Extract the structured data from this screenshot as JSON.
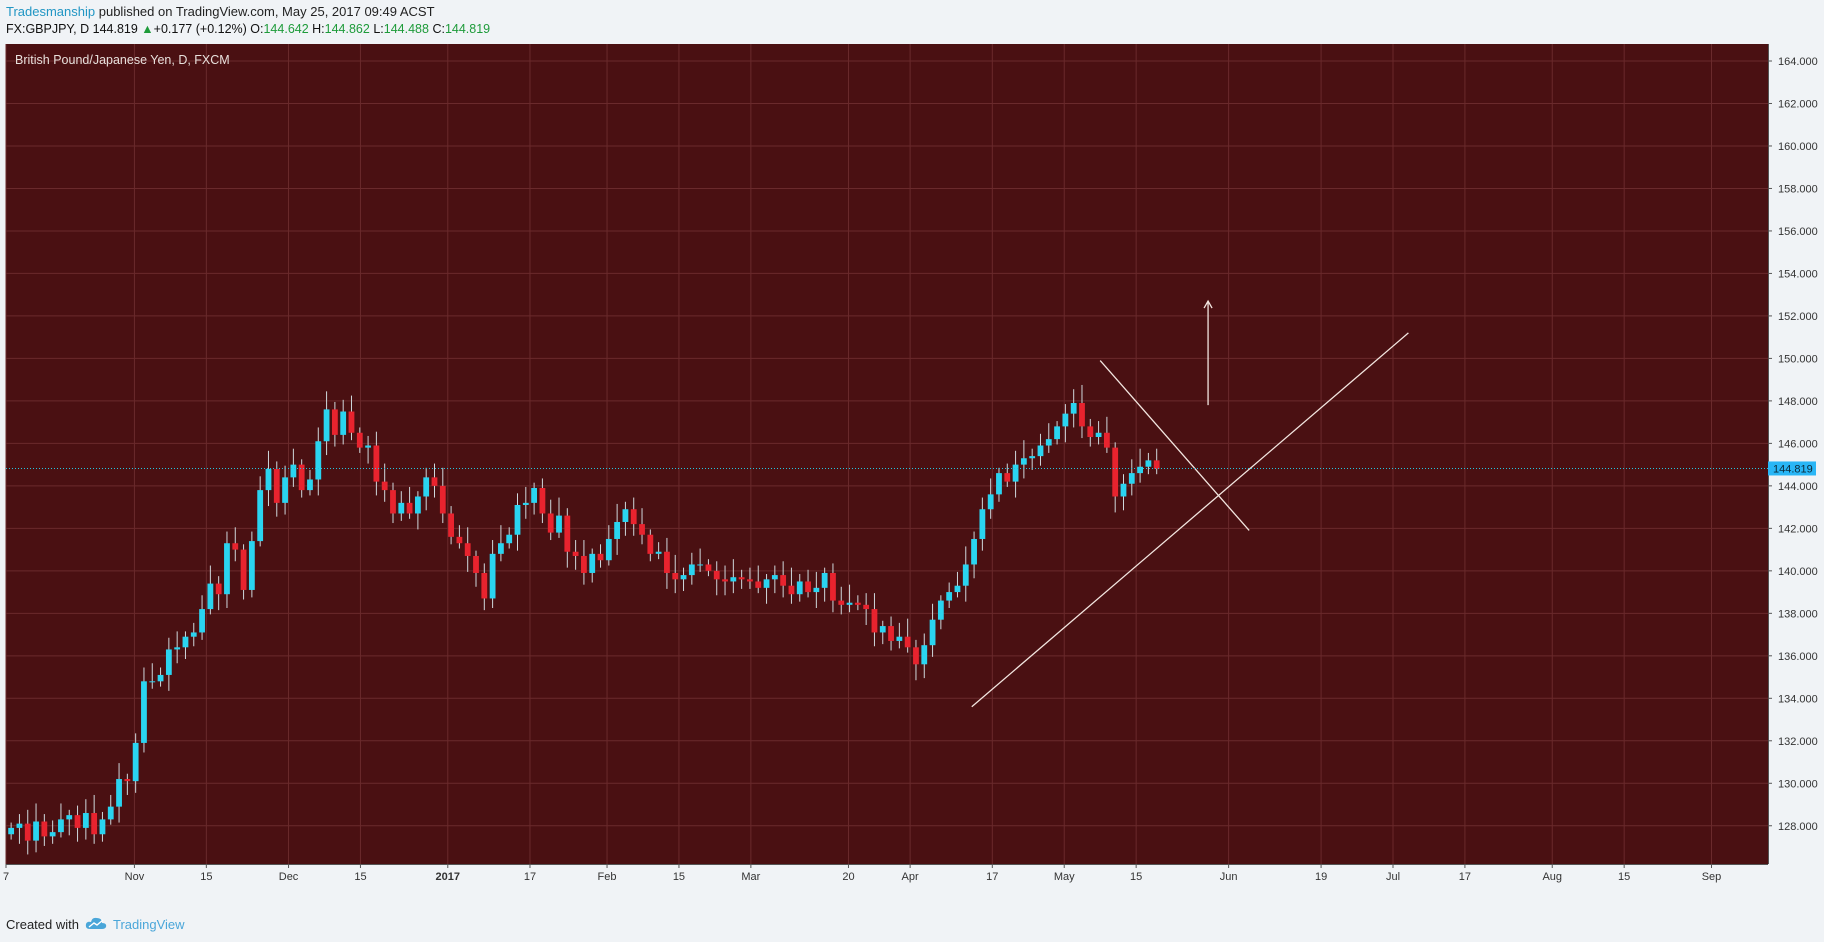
{
  "header": {
    "author": "Tradesmanship",
    "published": " published on TradingView.com, May 25, 2017 09:49 ACST",
    "symbol": "FX:GBPJPY, D",
    "last": "144.819",
    "change": "+0.177 (+0.12%)",
    "o_label": "O:",
    "o": "144.642",
    "h_label": "H:",
    "h": "144.862",
    "l_label": "L:",
    "l": "144.488",
    "c_label": "C:",
    "c": "144.819"
  },
  "footer": {
    "created_with": "Created with",
    "brand": "TradingView"
  },
  "colors": {
    "background": "#4a1012",
    "grid": "#6a2a2c",
    "up": "#2ad4f0",
    "down": "#e8232e",
    "drawing": "#f3e6e0",
    "price_line": "#26c6e0",
    "price_badge": "#29b6f6"
  },
  "chart_data": {
    "type": "candlestick",
    "title": "British Pound/Japanese Yen, D, FXCM",
    "ylim": [
      126.2,
      164.8
    ],
    "y_ticks": [
      "164.000",
      "162.000",
      "160.000",
      "158.000",
      "156.000",
      "154.000",
      "152.000",
      "150.000",
      "148.000",
      "146.000",
      "144.000",
      "142.000",
      "140.000",
      "138.000",
      "136.000",
      "134.000",
      "132.000",
      "130.000",
      "128.000"
    ],
    "x_ticks": [
      {
        "label": "7",
        "day": 0
      },
      {
        "label": "Nov",
        "day": 25
      },
      {
        "label": "15",
        "day": 39
      },
      {
        "label": "Dec",
        "day": 55
      },
      {
        "label": "15",
        "day": 69
      },
      {
        "label": "2017",
        "day": 86
      },
      {
        "label": "17",
        "day": 102
      },
      {
        "label": "Feb",
        "day": 117
      },
      {
        "label": "15",
        "day": 131
      },
      {
        "label": "Mar",
        "day": 145
      },
      {
        "label": "20",
        "day": 164
      },
      {
        "label": "Apr",
        "day": 176
      },
      {
        "label": "17",
        "day": 192
      },
      {
        "label": "May",
        "day": 206
      },
      {
        "label": "15",
        "day": 220
      },
      {
        "label": "Jun",
        "day": 238
      },
      {
        "label": "19",
        "day": 256
      },
      {
        "label": "Jul",
        "day": 270
      },
      {
        "label": "17",
        "day": 284
      },
      {
        "label": "Aug",
        "day": 301
      },
      {
        "label": "15",
        "day": 315
      },
      {
        "label": "Sep",
        "day": 332
      }
    ],
    "x_range_days": [
      0,
      343
    ],
    "last_price": 144.819,
    "last_price_label": "144.819",
    "closes": [
      127.9,
      128.1,
      127.3,
      128.2,
      127.5,
      127.7,
      128.3,
      128.5,
      127.9,
      128.6,
      127.6,
      128.3,
      128.9,
      130.2,
      130.1,
      131.9,
      134.8,
      134.8,
      135.1,
      136.3,
      136.4,
      136.9,
      137.1,
      138.2,
      139.4,
      138.9,
      141.3,
      141.0,
      139.1,
      141.4,
      143.8,
      144.8,
      143.2,
      144.4,
      145.0,
      143.8,
      144.3,
      146.1,
      147.6,
      146.4,
      147.5,
      146.5,
      145.8,
      145.9,
      144.2,
      143.8,
      142.7,
      143.2,
      142.7,
      143.5,
      144.4,
      144.0,
      142.7,
      141.6,
      141.3,
      140.7,
      139.9,
      138.7,
      140.8,
      141.3,
      141.7,
      143.1,
      143.2,
      143.9,
      142.7,
      141.8,
      142.6,
      140.9,
      140.7,
      139.9,
      140.8,
      140.5,
      141.5,
      142.3,
      142.9,
      142.2,
      141.7,
      140.8,
      140.9,
      139.9,
      139.6,
      139.8,
      140.3,
      140.3,
      140.0,
      139.6,
      139.5,
      139.7,
      139.6,
      139.5,
      139.2,
      139.6,
      139.8,
      139.3,
      138.9,
      139.5,
      139.0,
      139.2,
      139.9,
      138.6,
      138.4,
      138.5,
      138.4,
      138.2,
      137.1,
      137.4,
      136.7,
      136.9,
      136.4,
      135.6,
      136.5,
      137.7,
      138.6,
      139.0,
      139.3,
      140.3,
      141.5,
      142.9,
      143.6,
      144.6,
      144.2,
      145.0,
      145.3,
      145.4,
      145.9,
      146.2,
      146.8,
      147.4,
      147.9,
      146.8,
      146.3,
      146.5,
      145.8,
      143.5,
      144.1,
      144.6,
      144.9,
      145.2,
      144.8
    ],
    "annotations": [
      {
        "type": "trendline",
        "from": {
          "day": 188,
          "price": 133.6
        },
        "to": {
          "day": 273,
          "price": 151.2
        }
      },
      {
        "type": "trendline",
        "from": {
          "day": 213,
          "price": 149.9
        },
        "to": {
          "day": 242,
          "price": 141.9
        }
      },
      {
        "type": "arrow",
        "from": {
          "day": 234,
          "price": 147.8
        },
        "to": {
          "day": 234,
          "price": 152.7
        }
      }
    ]
  }
}
